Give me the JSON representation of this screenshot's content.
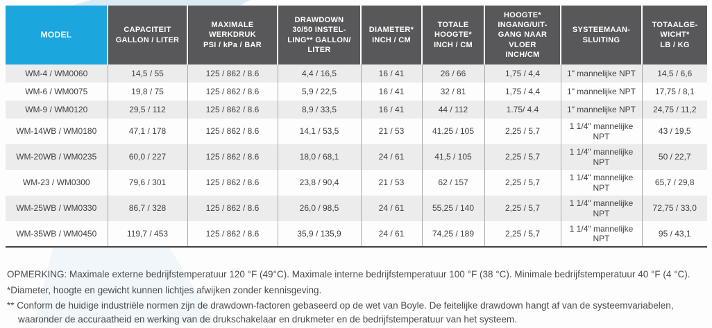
{
  "colors": {
    "accent_cyan": "#1BA6DD",
    "header_gray": "#58585A",
    "row_stripe": "#ECECED",
    "body_text": "#414042",
    "border_gray": "#A7A9AC"
  },
  "table": {
    "columns": [
      "MODEL",
      "CAPACITEIT\nGALLON / LITER",
      "MAXIMALE\nWERKDRUK\nPSI / kPa / BAR",
      "DRAWDOWN\n30/50 INSTEL-\nLING** GALLON/\nLITER",
      "DIAMETER*\nINCH / CM",
      "TOTALE\nHOOGTE*\nINCH / CM",
      "HOOGTE*\nINGANG/UIT-\nGANG NAAR\nVLOER\nINCH/CM",
      "SYSTEEMAAN-\nSLUITING",
      "TOTAALGE-\nWICHT*\nLB / KG"
    ],
    "rows": [
      [
        "WM-4 / WM0060",
        "14,5 / 55",
        "125 / 862 / 8.6",
        "4,4 / 16,5",
        "16 / 41",
        "26 / 66",
        "1,75 / 4,4",
        "1\" mannelijke NPT",
        "14,5 / 6,6"
      ],
      [
        "WM-6 / WM0075",
        "19,8 / 75",
        "125 / 862 / 8.6",
        "5,9 / 22,5",
        "16 / 41",
        "32 / 81",
        "1,75 / 4,4",
        "1\" mannelijke NPT",
        "17,75 / 8,1"
      ],
      [
        "WM-9 / WM0120",
        "29,5 / 112",
        "125 / 862 / 8.6",
        "8,9 / 33,5",
        "16 / 41",
        "44 / 112",
        "1.75/ 4.4",
        "1\" mannelijke NPT",
        "24,75 / 11,2"
      ],
      [
        "WM-14WB / WM0180",
        "47,1 / 178",
        "125 / 862 / 8.6",
        "14,1 / 53,5",
        "21 / 53",
        "41,25 / 105",
        "2,25 / 5,7",
        "1 1/4\" mannelijke NPT",
        "43 / 19,5"
      ],
      [
        "WM-20WB / WM0235",
        "60,0 / 227",
        "125 / 862 / 8.6",
        "18,0 / 68,1",
        "24 / 61",
        "41,5 / 105",
        "2,25 / 5,7",
        "1 1/4\" mannelijke NPT",
        "50 / 22,7"
      ],
      [
        "WM-23 / WM0300",
        "79,6 / 301",
        "125 / 862 / 8.6",
        "23,8 / 90,4",
        "21 / 53",
        "62 / 157",
        "2,25 / 5,7",
        "1 1/4\" mannelijke NPT",
        "65,7 / 29,8"
      ],
      [
        "WM-25WB / WM0330",
        "86,7 / 328",
        "125 / 862 / 8.6",
        "26,0 / 98,5",
        "24 / 61",
        "55,25 / 140",
        "2,25 / 5,7",
        "1 1/4\" mannelijke NPT",
        "72,75 / 33,0"
      ],
      [
        "WM-35WB / WM0450",
        "119,7 / 453",
        "125 / 862 / 8.6",
        "35,9 / 135,9",
        "24 / 61",
        "74,25 / 189",
        "2,25 / 5,7",
        "1 1/4\" mannelijke NPT",
        "95 / 43,1"
      ]
    ]
  },
  "notes": {
    "line1": "OPMERKING: Maximale externe bedrijfstemperatuur 120 °F (49°C). Maximale interne bedrijfstemperatuur 100 °F (38 °C). Minimale bedrijfstemperatuur 40 °F (4 °C).",
    "line2": "*Diameter, hoogte en gewicht kunnen lichtjes afwijken zonder kennisgeving.",
    "line3": "** Conform de huidige industriële normen zijn de drawdown-factoren gebaseerd op de wet van Boyle. De feitelijke drawdown hangt af van de systeemvariabelen, waaronder de accuraatheid en werking van de drukschakelaar en drukmeter en de bedrijfstemperatuur van het systeem."
  }
}
